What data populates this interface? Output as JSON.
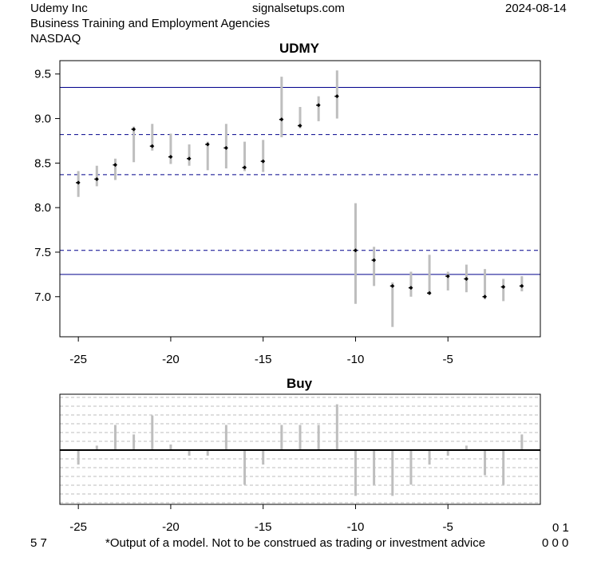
{
  "header": {
    "company": "Udemy Inc",
    "site": "signalsetups.com",
    "date": "2024-08-14",
    "industry": "Business Training and Employment Agencies",
    "exchange": "NASDAQ"
  },
  "footer": {
    "left": "5 7",
    "disclaimer": "*Output of a model. Not to be construed as trading or investment advice",
    "right_top": "0 1",
    "right_bottom": "0 0 0"
  },
  "colors": {
    "range_bar": "#bebebe",
    "band_line": "#00008b",
    "zero_line": "#000000",
    "grid": "#bebebe"
  },
  "chart_data": [
    {
      "type": "bar",
      "title": "UDMY",
      "xlim": [
        -26,
        0
      ],
      "ylim": [
        6.55,
        9.65
      ],
      "x_ticks": [
        -25,
        -20,
        -15,
        -10,
        -5
      ],
      "y_ticks": [
        7.0,
        7.5,
        8.0,
        8.5,
        9.0,
        9.5
      ],
      "y_tick_labels": [
        "7.0",
        "7.5",
        "8.0",
        "8.5",
        "9.0",
        "9.5"
      ],
      "x": [
        -25,
        -24,
        -23,
        -22,
        -21,
        -20,
        -19,
        -18,
        -17,
        -16,
        -15,
        -14,
        -13,
        -12,
        -11,
        -10,
        -9,
        -8,
        -7,
        -6,
        -5,
        -4,
        -3,
        -2,
        -1
      ],
      "high": [
        8.41,
        8.47,
        8.55,
        8.91,
        8.94,
        8.83,
        8.71,
        8.74,
        8.94,
        8.74,
        8.76,
        9.47,
        9.13,
        9.25,
        9.54,
        8.05,
        7.56,
        7.16,
        7.28,
        7.47,
        7.28,
        7.36,
        7.31,
        7.2,
        7.23
      ],
      "low": [
        8.12,
        8.24,
        8.31,
        8.51,
        8.64,
        8.49,
        8.47,
        8.42,
        8.44,
        8.41,
        8.4,
        8.79,
        8.89,
        8.97,
        9.0,
        6.92,
        7.12,
        6.66,
        7.0,
        7.02,
        7.07,
        7.05,
        6.97,
        6.95,
        7.06
      ],
      "close": [
        8.28,
        8.32,
        8.48,
        8.88,
        8.69,
        8.57,
        8.55,
        8.71,
        8.67,
        8.45,
        8.52,
        8.99,
        8.92,
        9.15,
        9.25,
        7.52,
        7.41,
        7.12,
        7.1,
        7.04,
        7.23,
        7.2,
        7.0,
        7.11,
        7.12
      ],
      "bands_solid": [
        9.35,
        7.25
      ],
      "bands_dashed": [
        8.82,
        8.37,
        7.52
      ]
    },
    {
      "type": "bar",
      "title": "Buy",
      "xlim": [
        -26,
        0
      ],
      "ylim": [
        -1.0,
        1.0
      ],
      "x_ticks": [
        -25,
        -20,
        -15,
        -10,
        -5
      ],
      "grid": true,
      "x": [
        -25,
        -24,
        -23,
        -22,
        -21,
        -20,
        -19,
        -18,
        -17,
        -16,
        -15,
        -14,
        -13,
        -12,
        -11,
        -10,
        -9,
        -8,
        -7,
        -6,
        -5,
        -4,
        -3,
        -2,
        -1
      ],
      "values": [
        -0.26,
        0.08,
        0.45,
        0.28,
        0.62,
        0.1,
        -0.1,
        -0.1,
        0.45,
        -0.62,
        -0.26,
        0.45,
        0.45,
        0.45,
        0.82,
        -0.82,
        -0.62,
        -0.82,
        -0.62,
        -0.26,
        -0.1,
        0.08,
        -0.45,
        -0.62,
        0.28
      ]
    }
  ]
}
